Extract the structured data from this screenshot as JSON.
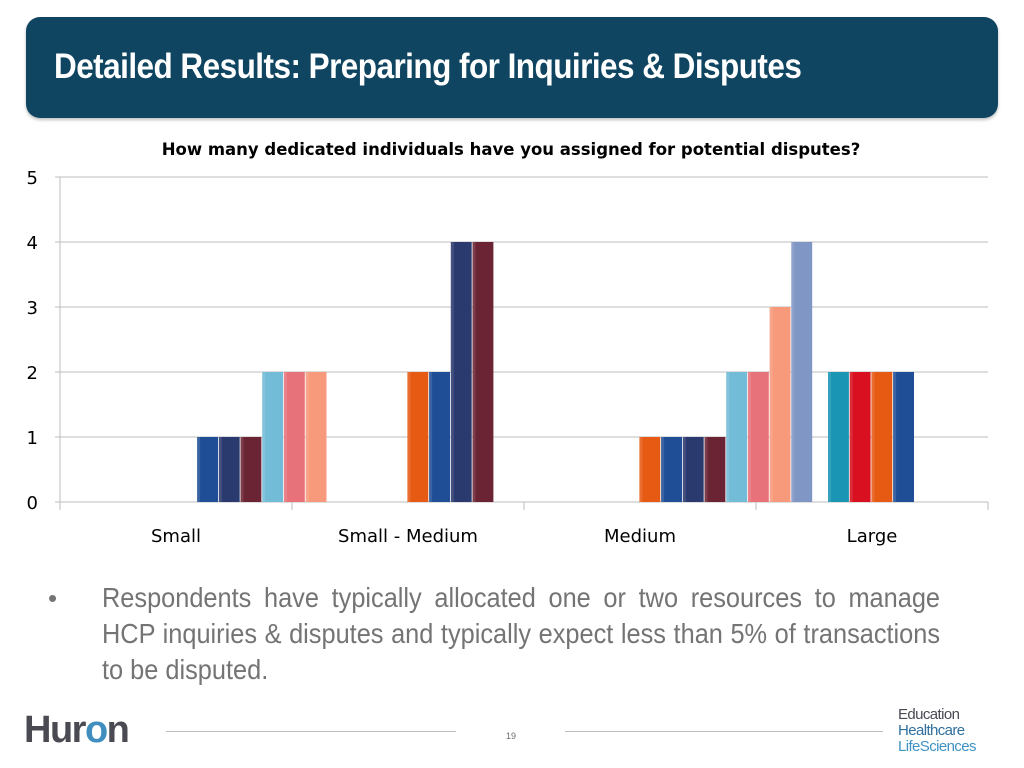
{
  "slide": {
    "title": "Detailed Results: Preparing for Inquiries & Disputes",
    "bullet_symbol": "•",
    "bullet_text": "Respondents have typically allocated one or two resources to manage HCP inquiries & disputes and typically expect less than 5% of transactions to be disputed.",
    "page_number": "19",
    "logo_left": "Huron",
    "logo_right_lines": [
      "Education",
      "Healthcare",
      "LifeSciences"
    ]
  },
  "colors": {
    "title_bar": "#0f4560",
    "title_text": "#ffffff",
    "bullet_text": "#747474",
    "grid": "#bdbdbd",
    "logo_left": "#4a4a52",
    "logo_accent": "#3f8ebd"
  },
  "chart_data": {
    "type": "bar",
    "title": "How many dedicated individuals have you assigned for potential disputes?",
    "xlabel": "",
    "ylabel": "",
    "ylim": [
      0,
      5
    ],
    "yticks": [
      0,
      1,
      2,
      3,
      4,
      5
    ],
    "grid": true,
    "legend": "none",
    "slots_per_category": 8,
    "categories": [
      "Small",
      "Small - Medium",
      "Medium",
      "Large"
    ],
    "groups": [
      {
        "category": "Small",
        "bars": [
          {
            "slot": 3,
            "value": 1,
            "color": "#1f4e96"
          },
          {
            "slot": 4,
            "value": 1,
            "color": "#2b3a6e"
          },
          {
            "slot": 5,
            "value": 1,
            "color": "#6b2434"
          },
          {
            "slot": 6,
            "value": 2,
            "color": "#72bcd8"
          },
          {
            "slot": 7,
            "value": 2,
            "color": "#e8727a"
          },
          {
            "slot": 8,
            "value": 2,
            "color": "#f79a7c"
          }
        ]
      },
      {
        "category": "Small - Medium",
        "bars": [
          {
            "slot": 2,
            "value": 2,
            "color": "#e65a14"
          },
          {
            "slot": 3,
            "value": 2,
            "color": "#1f4e96"
          },
          {
            "slot": 4,
            "value": 4,
            "color": "#2b3a6e"
          },
          {
            "slot": 5,
            "value": 4,
            "color": "#6b2434"
          }
        ]
      },
      {
        "category": "Medium",
        "bars": [
          {
            "slot": 2,
            "value": 1,
            "color": "#e65a14"
          },
          {
            "slot": 3,
            "value": 1,
            "color": "#1f4e96"
          },
          {
            "slot": 4,
            "value": 1,
            "color": "#2b3a6e"
          },
          {
            "slot": 5,
            "value": 1,
            "color": "#6b2434"
          },
          {
            "slot": 6,
            "value": 2,
            "color": "#72bcd8"
          },
          {
            "slot": 7,
            "value": 2,
            "color": "#e8727a"
          },
          {
            "slot": 8,
            "value": 3,
            "color": "#f79a7c"
          },
          {
            "slot": 9,
            "value": 4,
            "color": "#8096c4"
          }
        ]
      },
      {
        "category": "Large",
        "bars": [
          {
            "slot": 0,
            "value": 2,
            "color": "#1a96b4"
          },
          {
            "slot": 1,
            "value": 2,
            "color": "#d81020"
          },
          {
            "slot": 2,
            "value": 2,
            "color": "#e65a14"
          },
          {
            "slot": 3,
            "value": 2,
            "color": "#1f4e96"
          }
        ]
      }
    ]
  }
}
